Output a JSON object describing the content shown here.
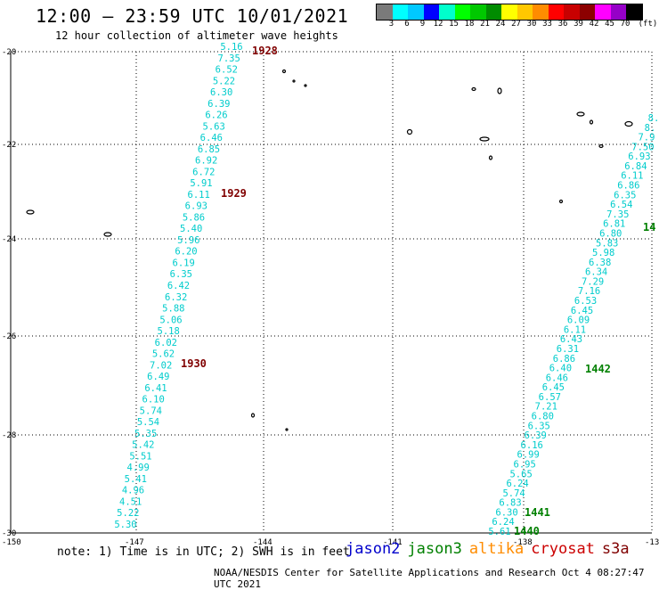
{
  "header": {
    "title": "12:00 – 23:59 UTC 10/01/2021",
    "subtitle": "12 hour collection of altimeter wave heights"
  },
  "colorbar": {
    "colors": [
      "#7a7a7a",
      "#00ffff",
      "#00c8ff",
      "#0000ff",
      "#00ffcc",
      "#00ff00",
      "#00c800",
      "#008c00",
      "#ffff00",
      "#ffc800",
      "#ff8c00",
      "#ff0000",
      "#c80000",
      "#8c0000",
      "#ff00ff",
      "#9600c8",
      "#000000"
    ],
    "labels": [
      "3",
      "6",
      "9",
      "12",
      "15",
      "18",
      "21",
      "24",
      "27",
      "30",
      "33",
      "36",
      "39",
      "42",
      "45",
      "70",
      "(ft)"
    ]
  },
  "axes": {
    "y_labels": [
      "-20",
      "-22",
      "-24",
      "-26",
      "-28",
      "-30"
    ],
    "x_labels": [
      "-150",
      "-147",
      "-144",
      "-141",
      "-138",
      "-13"
    ]
  },
  "tracks": [
    {
      "name": "track-1928",
      "color": "#00cccc",
      "values": [
        "5.16",
        "7.35",
        "6.52",
        "5.22",
        "6.30",
        "6.39",
        "6.26",
        "5.63",
        "6.46",
        "6.85",
        "6.92",
        "6.72",
        "5.91",
        "6.11",
        "6.93",
        "5.86",
        "5.40",
        "5.96",
        "6.20",
        "6.19",
        "6.35",
        "6.42",
        "6.32",
        "5.88",
        "5.06",
        "5.18",
        "6.02",
        "5.62",
        "7.02",
        "6.49",
        "6.41",
        "6.10",
        "5.74",
        "5.54",
        "5.35",
        "5.42",
        "5.51",
        "4.99",
        "5.41",
        "4.96",
        "4.51",
        "5.22",
        "5.30"
      ],
      "times": [
        {
          "text": "1928",
          "color": "#800000"
        },
        {
          "text": "1929",
          "color": "#800000"
        },
        {
          "text": "1930",
          "color": "#800000"
        }
      ]
    },
    {
      "name": "track-1440",
      "color": "#00cccc",
      "values": [
        "8.",
        "8.",
        "7.9",
        "7.50",
        "6.93",
        "6.84",
        "6.11",
        "6.86",
        "6.35",
        "6.54",
        "7.35",
        "6.81",
        "6.80",
        "5.83",
        "5.98",
        "6.38",
        "6.34",
        "7.29",
        "7.16",
        "6.53",
        "6.45",
        "6.09",
        "6.11",
        "6.43",
        "6.31",
        "6.86",
        "6.40",
        "6.46",
        "6.45",
        "6.57",
        "7.21",
        "6.80",
        "6.35",
        "6.39",
        "6.16",
        "6.99",
        "6.95",
        "5.65",
        "6.24",
        "5.74",
        "6.83",
        "6.30",
        "6.24",
        "5.61"
      ],
      "times": [
        {
          "text": "14",
          "color": "#008000"
        },
        {
          "text": "1442",
          "color": "#008000"
        },
        {
          "text": "1441",
          "color": "#008000"
        },
        {
          "text": "1440",
          "color": "#008000"
        }
      ]
    }
  ],
  "footer": {
    "note": "note: 1) Time is in UTC; 2) SWH is in feet",
    "satellites": [
      {
        "name": "jason2",
        "color": "#0000cc"
      },
      {
        "name": "jason3",
        "color": "#008000"
      },
      {
        "name": "altika",
        "color": "#ff8c00"
      },
      {
        "name": "cryosat",
        "color": "#cc0000"
      },
      {
        "name": "s3a",
        "color": "#800000"
      }
    ],
    "credit": "NOAA/NESDIS Center for Satellite Applications and Research   Oct  4 08:27:47 UTC 2021"
  }
}
